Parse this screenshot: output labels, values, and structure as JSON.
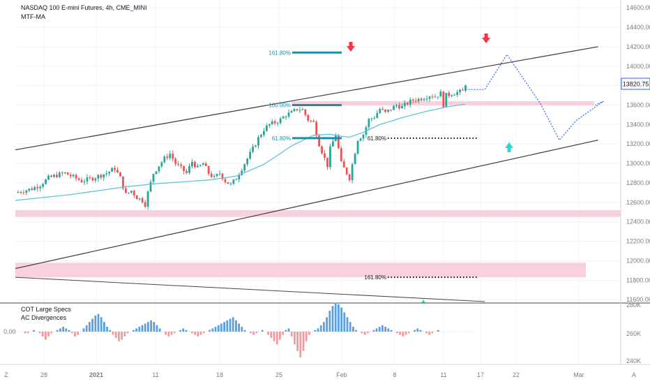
{
  "header": {
    "symbol_title": "NASDAQ 100 E-mini Futures, 4h, CME_MINI",
    "indicator_main": "MTF-MA"
  },
  "lower_pane": {
    "indicator_1": "COT Large Specs",
    "indicator_2": "AC Divergences",
    "zero_label": "0.00"
  },
  "footer": {
    "left_icon": "Z",
    "right_icon": "A"
  },
  "colors": {
    "channel": "#474747",
    "ma": "#5fc4d8",
    "fib": "#1c8fa8",
    "zone": "#f8c9d8",
    "down_arrow": "#f23645",
    "up_arrow": "#26d9d9",
    "projection": "#2962ff",
    "bull_candle": "#26a69a",
    "bear_candle": "#ef5350",
    "hist_pos": "#5a9fe0",
    "hist_neg": "#f29aa0",
    "price_badge_border": "#2962ff"
  },
  "chart_data": {
    "type": "candlestick",
    "title": "NASDAQ 100 E-mini Futures, 4h, CME_MINI",
    "last_price": "13820.75",
    "price_axis": {
      "labels": [
        "14600.00",
        "14400.00",
        "14200.00",
        "14000.00",
        "13800.00",
        "13600.00",
        "13400.00",
        "13200.00",
        "13000.00",
        "12800.00",
        "12600.00",
        "12400.00",
        "12200.00",
        "12000.00",
        "11800.00",
        "11600.00"
      ],
      "ylim": [
        11580,
        14680
      ]
    },
    "time_axis": {
      "labels": [
        "28",
        "2021",
        "11",
        "18",
        "25",
        "Feb",
        "8",
        "11",
        "17",
        "22",
        "Mar"
      ]
    },
    "lower_axis": {
      "labels": [
        "280K",
        "260K",
        "240K"
      ]
    },
    "price_path": [
      [
        0,
        12700
      ],
      [
        3,
        12720
      ],
      [
        6,
        12740
      ],
      [
        9,
        12780
      ],
      [
        12,
        12850
      ],
      [
        15,
        12880
      ],
      [
        18,
        12900
      ],
      [
        21,
        12860
      ],
      [
        24,
        12820
      ],
      [
        27,
        12840
      ],
      [
        30,
        12870
      ],
      [
        33,
        12900
      ],
      [
        36,
        12950
      ],
      [
        38,
        12850
      ],
      [
        40,
        12680
      ],
      [
        42,
        12720
      ],
      [
        44,
        12650
      ],
      [
        46,
        12620
      ],
      [
        47,
        12580
      ],
      [
        48,
        12700
      ],
      [
        50,
        12900
      ],
      [
        52,
        12980
      ],
      [
        54,
        13050
      ],
      [
        56,
        13100
      ],
      [
        58,
        13000
      ],
      [
        60,
        12950
      ],
      [
        62,
        12900
      ],
      [
        64,
        13020
      ],
      [
        66,
        12950
      ],
      [
        68,
        13000
      ],
      [
        70,
        12900
      ],
      [
        72,
        12850
      ],
      [
        74,
        12900
      ],
      [
        76,
        12820
      ],
      [
        78,
        12780
      ],
      [
        80,
        12850
      ],
      [
        82,
        12950
      ],
      [
        84,
        13050
      ],
      [
        86,
        13150
      ],
      [
        88,
        13260
      ],
      [
        90,
        13350
      ],
      [
        92,
        13400
      ],
      [
        94,
        13420
      ],
      [
        96,
        13450
      ],
      [
        98,
        13500
      ],
      [
        100,
        13520
      ],
      [
        102,
        13560
      ],
      [
        104,
        13550
      ],
      [
        106,
        13450
      ],
      [
        108,
        13420
      ],
      [
        110,
        13200
      ],
      [
        112,
        13050
      ],
      [
        113,
        12980
      ],
      [
        114,
        13150
      ],
      [
        116,
        13300
      ],
      [
        118,
        13000
      ],
      [
        120,
        12900
      ],
      [
        121,
        12850
      ],
      [
        122,
        12990
      ],
      [
        124,
        13250
      ],
      [
        126,
        13300
      ],
      [
        128,
        13450
      ],
      [
        130,
        13480
      ],
      [
        132,
        13560
      ],
      [
        134,
        13520
      ],
      [
        136,
        13560
      ],
      [
        138,
        13600
      ],
      [
        140,
        13580
      ],
      [
        142,
        13620
      ],
      [
        144,
        13650
      ],
      [
        146,
        13660
      ],
      [
        148,
        13680
      ],
      [
        150,
        13700
      ],
      [
        152,
        13690
      ],
      [
        154,
        13720
      ],
      [
        155,
        13600
      ],
      [
        156,
        13700
      ],
      [
        158,
        13720
      ],
      [
        160,
        13730
      ],
      [
        162,
        13740
      ],
      [
        163,
        13820
      ]
    ],
    "moving_average": [
      [
        0,
        12620
      ],
      [
        10,
        12650
      ],
      [
        20,
        12680
      ],
      [
        30,
        12720
      ],
      [
        40,
        12760
      ],
      [
        50,
        12790
      ],
      [
        60,
        12810
      ],
      [
        70,
        12830
      ],
      [
        80,
        12870
      ],
      [
        90,
        12990
      ],
      [
        100,
        13180
      ],
      [
        108,
        13290
      ],
      [
        114,
        13300
      ],
      [
        118,
        13280
      ],
      [
        121,
        13270
      ],
      [
        126,
        13320
      ],
      [
        132,
        13400
      ],
      [
        140,
        13470
      ],
      [
        148,
        13530
      ],
      [
        156,
        13580
      ],
      [
        163,
        13610
      ]
    ],
    "channel": {
      "upper": [
        [
          0,
          13140
        ],
        [
          211,
          14200
        ]
      ],
      "lower": [
        [
          0,
          11920
        ],
        [
          211,
          13240
        ]
      ],
      "declining_line": [
        [
          0,
          11830
        ],
        [
          170,
          11580
        ]
      ]
    },
    "zones": [
      {
        "from": 13600,
        "to": 13640
      },
      {
        "from": 12450,
        "to": 12520
      },
      {
        "from": 11830,
        "to": 11980
      }
    ],
    "fib_levels": [
      {
        "label": "161.80%",
        "price": 14140
      },
      {
        "label": "100.00%",
        "price": 13600
      },
      {
        "label": "61.80%",
        "price": 13260
      },
      {
        "label": "61.80%",
        "price": 13260,
        "dotted": true
      },
      {
        "label": "161.80%",
        "price": 11830,
        "dotted": true
      }
    ],
    "projection_path": [
      [
        163,
        13760
      ],
      [
        170,
        13760
      ],
      [
        178,
        14120
      ],
      [
        190,
        13620
      ],
      [
        197,
        13240
      ],
      [
        203,
        13440
      ],
      [
        213,
        13640
      ],
      [
        210,
        13600
      ]
    ],
    "lower_histogram": [
      0,
      0,
      0,
      -1,
      -1,
      0,
      1,
      0,
      -1,
      -3,
      -5,
      -3,
      -1,
      0,
      1,
      2,
      3,
      2,
      1,
      -1,
      -3,
      -2,
      0,
      2,
      4,
      6,
      8,
      10,
      11,
      9,
      6,
      3,
      1,
      -2,
      -4,
      -6,
      -5,
      -3,
      -1,
      0,
      1,
      2,
      3,
      4,
      5,
      6,
      7,
      6,
      4,
      2,
      0,
      -2,
      -3,
      -2,
      -1,
      0,
      1,
      2,
      1,
      0,
      -1,
      -2,
      -3,
      -2,
      -1,
      0,
      1,
      2,
      3,
      4,
      5,
      6,
      7,
      8,
      9,
      7,
      5,
      3,
      1,
      0,
      -1,
      -2,
      -1,
      0,
      1,
      0,
      -2,
      -4,
      -6,
      -8,
      -5,
      -2,
      1,
      2,
      -3,
      -8,
      -12,
      -16,
      -12,
      -6,
      -2,
      0,
      1,
      2,
      4,
      6,
      9,
      13,
      16,
      18,
      17,
      15,
      12,
      9,
      6,
      3,
      1,
      0,
      -1,
      -2,
      -1,
      0,
      1,
      2,
      3,
      4,
      3,
      2,
      1,
      0,
      -1,
      -2,
      -3,
      -2,
      -1,
      0,
      1,
      2,
      1,
      0,
      -1,
      -2,
      -1,
      0,
      1,
      0,
      0
    ]
  }
}
